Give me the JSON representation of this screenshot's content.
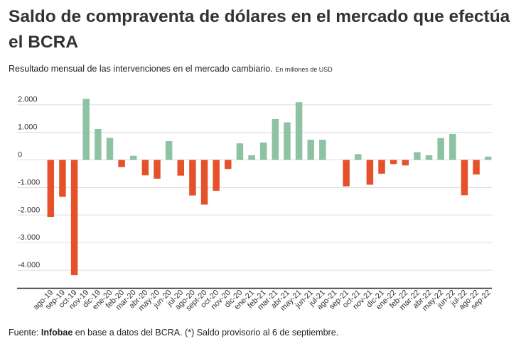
{
  "title": "Saldo de compraventa de dólares en el mercado que efectúa el BCRA",
  "subtitle": "Resultado  mensual de las intervenciones en el mercado cambiario.",
  "unit_note": "En millones de USD",
  "footer": {
    "prefix": "Fuente: ",
    "source": "Infobae",
    "rest": " en base a datos del BCRA.  (*) Saldo provisorio al 6 de septiembre."
  },
  "colors": {
    "positive": "#8dc3a2",
    "negative": "#e5512a",
    "grid": "#dddddd",
    "axis": "#222222"
  },
  "chart_data": {
    "type": "bar",
    "title": "Saldo de compraventa de dólares en el mercado que efectúa el BCRA",
    "ylabel": "En millones de USD",
    "xlabel": "",
    "ylim": [
      -4600,
      2500
    ],
    "yticks": [
      2000,
      1000,
      0,
      -1000,
      -2000,
      -3000,
      -4000
    ],
    "ytick_labels": [
      "2.000",
      "1.000",
      "0",
      "-1.000",
      "-2.000",
      "-3.000",
      "-4.000"
    ],
    "categories": [
      "ago-19",
      "sep-19",
      "oct-19",
      "nov-19",
      "dic-19",
      "ene-20",
      "feb-20",
      "mar-20",
      "abr-20",
      "may-20",
      "jun-20",
      "jul-20",
      "ago-20",
      "sept-20",
      "oct-20",
      "nov-20",
      "dic-20",
      "ene-21",
      "feb-21",
      "mar-21",
      "abr-21",
      "may-21",
      "jun-21",
      "jul-21",
      "ago-21",
      "sep-21",
      "oct-21",
      "nov-21",
      "dic-21",
      "ene-22",
      "feb-22",
      "mar-22",
      "abr-22",
      "may-22",
      "jun-22",
      "jul-22",
      "ago-22",
      "sep-22"
    ],
    "values": [
      -2070,
      -1340,
      -4180,
      2210,
      1120,
      800,
      -260,
      150,
      -560,
      -680,
      680,
      -570,
      -1290,
      -1620,
      -1120,
      -330,
      600,
      170,
      630,
      1480,
      1360,
      2090,
      730,
      730,
      0,
      -960,
      210,
      -900,
      -500,
      -150,
      -200,
      280,
      170,
      790,
      940,
      -1280,
      -530,
      120
    ]
  }
}
